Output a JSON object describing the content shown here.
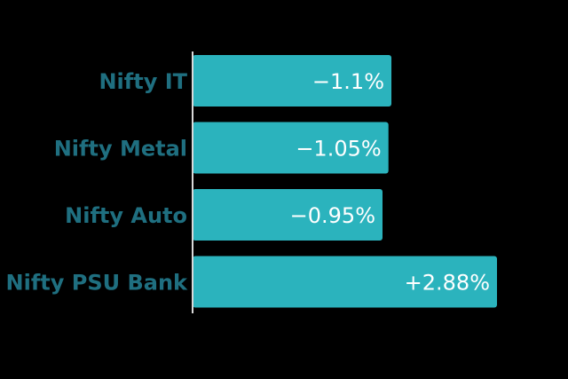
{
  "chart_data": {
    "type": "bar",
    "orientation": "horizontal",
    "categories": [
      "Nifty IT",
      "Nifty Metal",
      "Nifty Auto",
      "Nifty PSU Bank"
    ],
    "values": [
      -1.1,
      -1.05,
      -0.95,
      2.88
    ],
    "value_labels": [
      "−1.1%",
      "−1.05%",
      "−0.95%",
      "+2.88%"
    ],
    "magnitude_range": [
      0,
      3
    ],
    "title": "",
    "xlabel": "",
    "ylabel": "",
    "grid": false,
    "legend": "none",
    "colors": {
      "background": "#000000",
      "bar": "#2bb3bd",
      "category_text": "#1f6f80",
      "value_text": "#ffffff",
      "axis": "#d9d9d9"
    }
  }
}
